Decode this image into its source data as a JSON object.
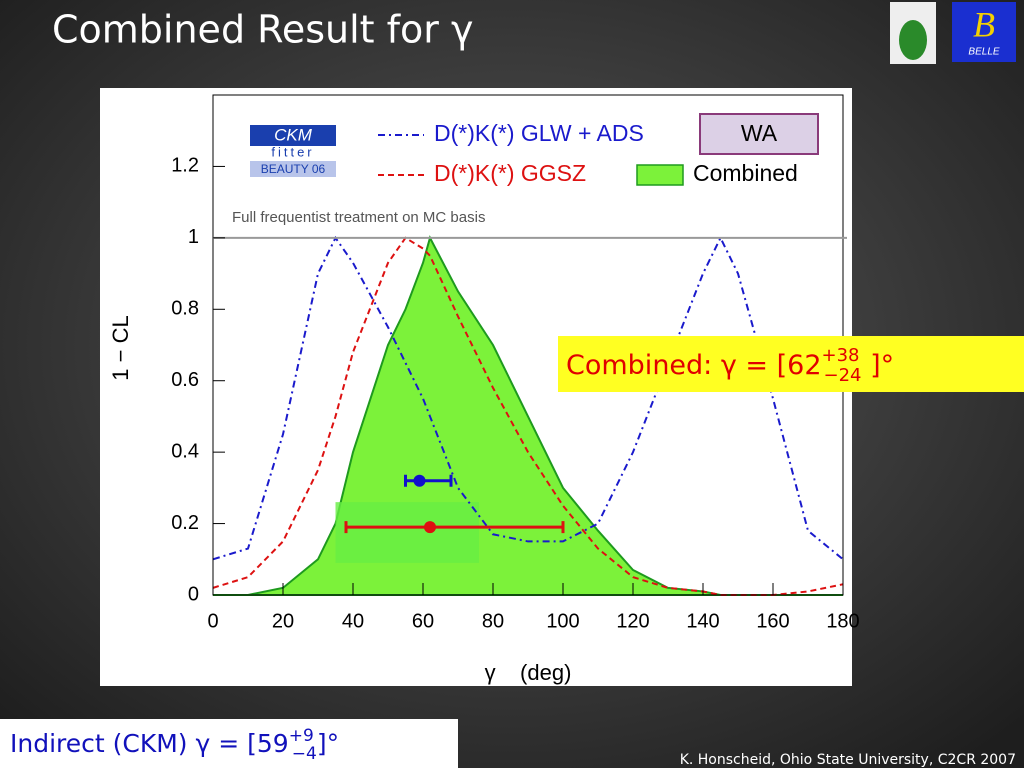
{
  "slide": {
    "title": "Combined Result for γ",
    "combined_box": {
      "text": "Combined: γ = [62",
      "sup": "+38",
      "sub": "−24",
      "close": " ]°"
    },
    "indirect_box": {
      "text": "Indirect (CKM) γ = [59",
      "sup": "+9",
      "sub": "−4",
      "close": "]°"
    },
    "footer": "K. Honscheid, Ohio State University, C2CR 2007",
    "logo_text": "BELLE"
  },
  "chart_data": {
    "type": "line",
    "xlabel": "γ    (deg)",
    "ylabel": "1 − CL",
    "note": "Full frequentist treatment on MC basis",
    "badge": {
      "line1": "CKM",
      "line2": "fitter",
      "line3": "BEAUTY 06"
    },
    "x": [
      0,
      10,
      20,
      30,
      35,
      40,
      50,
      55,
      60,
      62,
      70,
      80,
      90,
      100,
      110,
      120,
      130,
      140,
      145,
      150,
      160,
      170,
      180
    ],
    "series": [
      {
        "name": "D(*)K(*) GLW + ADS",
        "color": "#1a1acc",
        "style": "dashdot",
        "values": [
          0.1,
          0.13,
          0.45,
          0.9,
          1.0,
          0.93,
          0.75,
          0.65,
          0.55,
          0.5,
          0.3,
          0.17,
          0.15,
          0.15,
          0.2,
          0.4,
          0.65,
          0.9,
          1.0,
          0.9,
          0.55,
          0.18,
          0.1
        ]
      },
      {
        "name": "D(*)K(*) GGSZ",
        "color": "#dd1111",
        "style": "dashed",
        "values": [
          0.02,
          0.05,
          0.15,
          0.35,
          0.5,
          0.68,
          0.93,
          1.0,
          0.97,
          0.95,
          0.78,
          0.58,
          0.4,
          0.25,
          0.13,
          0.05,
          0.02,
          0.01,
          0,
          0,
          0,
          0.01,
          0.03
        ]
      },
      {
        "name": "Combined",
        "color": "#7cf23a",
        "style": "area",
        "values": [
          0,
          0,
          0.02,
          0.1,
          0.2,
          0.4,
          0.7,
          0.8,
          0.93,
          1.0,
          0.85,
          0.7,
          0.5,
          0.3,
          0.18,
          0.07,
          0.02,
          0.01,
          0,
          0,
          0,
          0,
          0
        ]
      }
    ],
    "wa_label": "WA",
    "wa_band": {
      "x": [
        35,
        76
      ],
      "y": [
        0.09,
        0.26
      ],
      "color": "#66ee44"
    },
    "markers": [
      {
        "x": 59,
        "y": 0.32,
        "xerr": [
          4,
          9
        ],
        "color": "#1111cc"
      },
      {
        "x": 62,
        "y": 0.19,
        "xerr": [
          24,
          38
        ],
        "color": "#dd1111"
      }
    ],
    "hline": 1,
    "xlim": [
      0,
      180
    ],
    "ylim": [
      0,
      1.4
    ],
    "xticks": [
      0,
      20,
      40,
      60,
      80,
      100,
      120,
      140,
      160,
      180
    ],
    "yticks": [
      0,
      0.2,
      0.4,
      0.6,
      0.8,
      1,
      1.2
    ],
    "legend": "top"
  }
}
